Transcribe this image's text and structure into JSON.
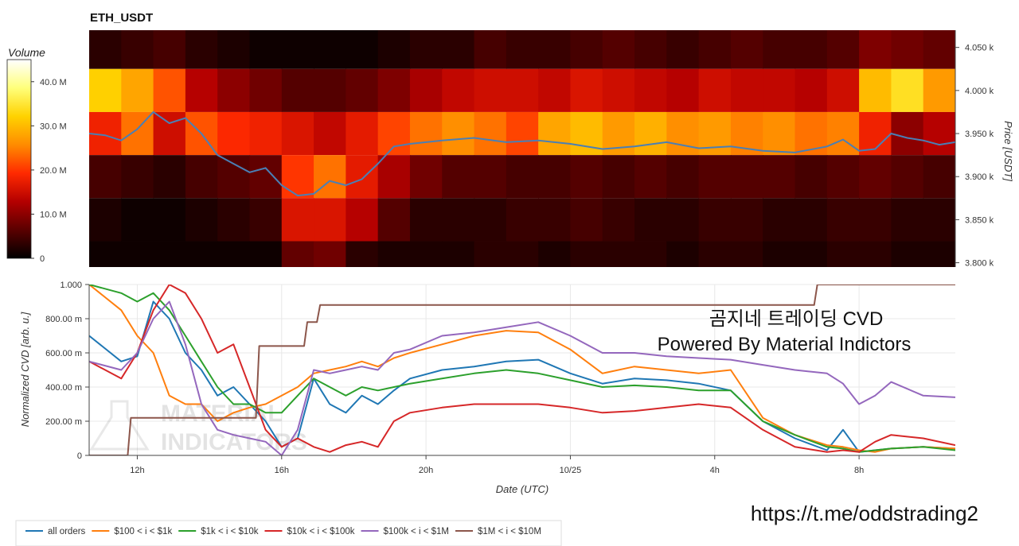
{
  "title": "ETH_USDT",
  "colorbar": {
    "title": "Volume",
    "ticks": [
      {
        "value": 40,
        "label": "40.0 M"
      },
      {
        "value": 30,
        "label": "30.0 M"
      },
      {
        "value": 20,
        "label": "20.0 M"
      },
      {
        "value": 10,
        "label": "10.0 M"
      },
      {
        "value": 0,
        "label": "0"
      }
    ],
    "max": 45,
    "colors": [
      "#000000",
      "#5a0000",
      "#b40000",
      "#ff2a00",
      "#ff8c00",
      "#ffd200",
      "#ffff7a",
      "#ffffff"
    ]
  },
  "overlay": {
    "line1": "곰지네 트레이딩 CVD",
    "line2": "Powered By Material Indictors",
    "url": "https://t.me/oddstrading2",
    "watermark_line1": "MATERIAL",
    "watermark_line2": "INDICATORS"
  },
  "chart_data": [
    {
      "type": "heatmap",
      "title": "ETH_USDT",
      "ylabel": "Price [USDT]",
      "ylim": [
        3795,
        4070
      ],
      "price_ticks": [
        {
          "value": 4050,
          "label": "4.050 k"
        },
        {
          "value": 4000,
          "label": "4.000 k"
        },
        {
          "value": 3950,
          "label": "3.950 k"
        },
        {
          "value": 3900,
          "label": "3.900 k"
        },
        {
          "value": 3850,
          "label": "3.850 k"
        },
        {
          "value": 3800,
          "label": "3.800 k"
        }
      ],
      "bands": [
        {
          "low": 4025,
          "high": 4075,
          "values": [
            3,
            4,
            5,
            3,
            2,
            1,
            1,
            1,
            1,
            2,
            3,
            3,
            5,
            4,
            4,
            5,
            6,
            5,
            4,
            5,
            6,
            5,
            5,
            6,
            9,
            8,
            7
          ]
        },
        {
          "low": 3975,
          "high": 4025,
          "values": [
            32,
            28,
            22,
            13,
            10,
            8,
            6,
            6,
            7,
            9,
            12,
            14,
            15,
            15,
            14,
            16,
            15,
            14,
            13,
            15,
            14,
            14,
            13,
            15,
            30,
            34,
            27
          ]
        },
        {
          "low": 3925,
          "high": 3975,
          "values": [
            18,
            24,
            15,
            22,
            19,
            18,
            16,
            14,
            17,
            21,
            24,
            26,
            24,
            21,
            28,
            30,
            27,
            29,
            26,
            27,
            25,
            26,
            24,
            25,
            18,
            10,
            13
          ]
        },
        {
          "low": 3875,
          "high": 3925,
          "values": [
            5,
            4,
            3,
            5,
            6,
            7,
            20,
            24,
            17,
            12,
            8,
            6,
            6,
            5,
            5,
            6,
            5,
            6,
            5,
            6,
            6,
            6,
            5,
            6,
            7,
            6,
            5
          ]
        },
        {
          "low": 3825,
          "high": 3875,
          "values": [
            2,
            1,
            1,
            2,
            3,
            4,
            16,
            16,
            13,
            6,
            3,
            3,
            3,
            4,
            4,
            5,
            4,
            3,
            3,
            4,
            4,
            3,
            3,
            4,
            4,
            3,
            3
          ]
        },
        {
          "low": 3775,
          "high": 3825,
          "values": [
            1,
            1,
            1,
            1,
            1,
            1,
            7,
            8,
            3,
            2,
            2,
            2,
            3,
            3,
            2,
            3,
            3,
            3,
            2,
            3,
            3,
            2,
            2,
            3,
            3,
            2,
            2
          ]
        }
      ],
      "price_series": {
        "name": "price",
        "color": "#4a7fb5",
        "x": [
          0,
          0.5,
          1,
          1.5,
          2,
          2.5,
          3,
          3.5,
          4,
          4.5,
          5,
          5.5,
          6,
          6.5,
          7,
          7.5,
          8,
          8.5,
          9,
          9.5,
          10,
          11,
          12,
          13,
          14,
          15,
          16,
          17,
          18,
          19,
          20,
          21,
          22,
          23,
          23.5,
          24,
          24.5,
          25,
          25.5,
          26,
          26.5,
          27
        ],
        "y": [
          3950,
          3948,
          3942,
          3955,
          3975,
          3962,
          3968,
          3950,
          3925,
          3915,
          3905,
          3910,
          3890,
          3878,
          3880,
          3895,
          3890,
          3897,
          3915,
          3935,
          3938,
          3942,
          3945,
          3940,
          3942,
          3938,
          3932,
          3935,
          3940,
          3933,
          3935,
          3930,
          3928,
          3935,
          3943,
          3930,
          3932,
          3950,
          3945,
          3942,
          3937,
          3940
        ]
      }
    },
    {
      "type": "line",
      "xlabel": "Date (UTC)",
      "ylabel": "Normalized CVD [arb. u.]",
      "xlim": [
        0,
        27
      ],
      "ylim": [
        0,
        1
      ],
      "x_ticks": [
        {
          "value": 1.5,
          "label": "12h"
        },
        {
          "value": 6,
          "label": "16h"
        },
        {
          "value": 10.5,
          "label": "20h"
        },
        {
          "value": 15,
          "label": "10/25"
        },
        {
          "value": 19.5,
          "label": "4h"
        },
        {
          "value": 24,
          "label": "8h"
        }
      ],
      "y_ticks": [
        {
          "value": 0,
          "label": "0"
        },
        {
          "value": 0.2,
          "label": "200.00 m"
        },
        {
          "value": 0.4,
          "label": "400.00 m"
        },
        {
          "value": 0.6,
          "label": "600.00 m"
        },
        {
          "value": 0.8,
          "label": "800.00 m"
        },
        {
          "value": 1,
          "label": "1.000"
        }
      ],
      "grid": true,
      "legend_position": "bottom-left",
      "series": [
        {
          "name": "all orders",
          "color": "#1f77b4",
          "x": [
            0,
            1,
            1.5,
            2,
            2.5,
            3,
            3.5,
            4,
            4.5,
            5,
            5.5,
            6,
            6.5,
            7,
            7.5,
            8,
            8.5,
            9,
            9.5,
            10,
            11,
            12,
            13,
            14,
            15,
            16,
            17,
            18,
            19,
            20,
            21,
            22,
            23,
            23.5,
            24,
            24.5,
            25,
            26,
            27
          ],
          "y": [
            0.7,
            0.55,
            0.58,
            0.9,
            0.8,
            0.6,
            0.5,
            0.35,
            0.4,
            0.3,
            0.2,
            0.05,
            0.1,
            0.45,
            0.3,
            0.25,
            0.35,
            0.3,
            0.38,
            0.45,
            0.5,
            0.52,
            0.55,
            0.56,
            0.48,
            0.42,
            0.45,
            0.44,
            0.42,
            0.38,
            0.2,
            0.1,
            0.03,
            0.15,
            0.02,
            0.03,
            0.04,
            0.05,
            0.04
          ]
        },
        {
          "name": "$100 < i < $1k",
          "color": "#ff7f0e",
          "x": [
            0,
            1,
            1.5,
            2,
            2.5,
            3,
            3.5,
            4,
            4.5,
            5,
            5.5,
            6,
            6.5,
            7,
            7.5,
            8,
            8.5,
            9,
            9.5,
            10,
            11,
            12,
            13,
            14,
            15,
            16,
            17,
            18,
            19,
            20,
            21,
            22,
            23,
            23.5,
            24,
            24.5,
            25,
            26,
            27
          ],
          "y": [
            1.0,
            0.85,
            0.7,
            0.6,
            0.35,
            0.3,
            0.3,
            0.2,
            0.25,
            0.28,
            0.3,
            0.35,
            0.4,
            0.48,
            0.5,
            0.52,
            0.55,
            0.52,
            0.57,
            0.6,
            0.65,
            0.7,
            0.73,
            0.72,
            0.62,
            0.48,
            0.52,
            0.5,
            0.48,
            0.5,
            0.22,
            0.12,
            0.06,
            0.05,
            0.03,
            0.02,
            0.04,
            0.05,
            0.04
          ]
        },
        {
          "name": "$1k < i < $10k",
          "color": "#2ca02c",
          "x": [
            0,
            1,
            1.5,
            2,
            2.5,
            3,
            3.5,
            4,
            4.5,
            5,
            5.5,
            6,
            6.5,
            7,
            7.5,
            8,
            8.5,
            9,
            9.5,
            10,
            11,
            12,
            13,
            14,
            15,
            16,
            17,
            18,
            19,
            20,
            21,
            22,
            23,
            23.5,
            24,
            24.5,
            25,
            26,
            27
          ],
          "y": [
            1.0,
            0.95,
            0.9,
            0.95,
            0.85,
            0.7,
            0.55,
            0.4,
            0.3,
            0.3,
            0.25,
            0.25,
            0.35,
            0.45,
            0.4,
            0.35,
            0.4,
            0.38,
            0.4,
            0.42,
            0.45,
            0.48,
            0.5,
            0.48,
            0.44,
            0.4,
            0.41,
            0.4,
            0.38,
            0.38,
            0.2,
            0.12,
            0.05,
            0.04,
            0.02,
            0.03,
            0.04,
            0.05,
            0.03
          ]
        },
        {
          "name": "$10k < i < $100k",
          "color": "#d62728",
          "x": [
            0,
            1,
            1.5,
            2,
            2.5,
            3,
            3.5,
            4,
            4.5,
            5,
            5.5,
            6,
            6.5,
            7,
            7.5,
            8,
            8.5,
            9,
            9.5,
            10,
            11,
            12,
            13,
            14,
            15,
            16,
            17,
            18,
            19,
            20,
            21,
            22,
            23,
            23.5,
            24,
            24.5,
            25,
            26,
            27
          ],
          "y": [
            0.55,
            0.45,
            0.6,
            0.85,
            1.0,
            0.95,
            0.8,
            0.6,
            0.65,
            0.4,
            0.15,
            0.05,
            0.1,
            0.05,
            0.02,
            0.06,
            0.08,
            0.05,
            0.2,
            0.25,
            0.28,
            0.3,
            0.3,
            0.3,
            0.28,
            0.25,
            0.26,
            0.28,
            0.3,
            0.28,
            0.15,
            0.05,
            0.02,
            0.03,
            0.02,
            0.08,
            0.12,
            0.1,
            0.06
          ]
        },
        {
          "name": "$100k < i < $1M",
          "color": "#9467bd",
          "x": [
            0,
            1,
            1.5,
            2,
            2.5,
            3,
            3.5,
            4,
            4.5,
            5,
            5.5,
            6,
            6.5,
            7,
            7.5,
            8,
            8.5,
            9,
            9.5,
            10,
            11,
            12,
            13,
            14,
            15,
            16,
            17,
            18,
            19,
            20,
            21,
            22,
            23,
            23.5,
            24,
            24.5,
            25,
            26,
            27
          ],
          "y": [
            0.55,
            0.5,
            0.6,
            0.8,
            0.9,
            0.65,
            0.3,
            0.15,
            0.12,
            0.1,
            0.08,
            0.0,
            0.15,
            0.5,
            0.48,
            0.5,
            0.52,
            0.5,
            0.6,
            0.62,
            0.7,
            0.72,
            0.75,
            0.78,
            0.7,
            0.6,
            0.6,
            0.58,
            0.57,
            0.56,
            0.53,
            0.5,
            0.48,
            0.42,
            0.3,
            0.35,
            0.43,
            0.35,
            0.34
          ]
        },
        {
          "name": "$1M < i < $10M",
          "color": "#8c564b",
          "x": [
            0,
            1.2,
            1.3,
            5.2,
            5.3,
            6.7,
            6.8,
            7.1,
            7.2,
            22.6,
            22.7,
            27
          ],
          "y": [
            0,
            0,
            0.22,
            0.22,
            0.64,
            0.64,
            0.78,
            0.78,
            0.88,
            0.88,
            1.0,
            1.0
          ]
        }
      ]
    }
  ]
}
